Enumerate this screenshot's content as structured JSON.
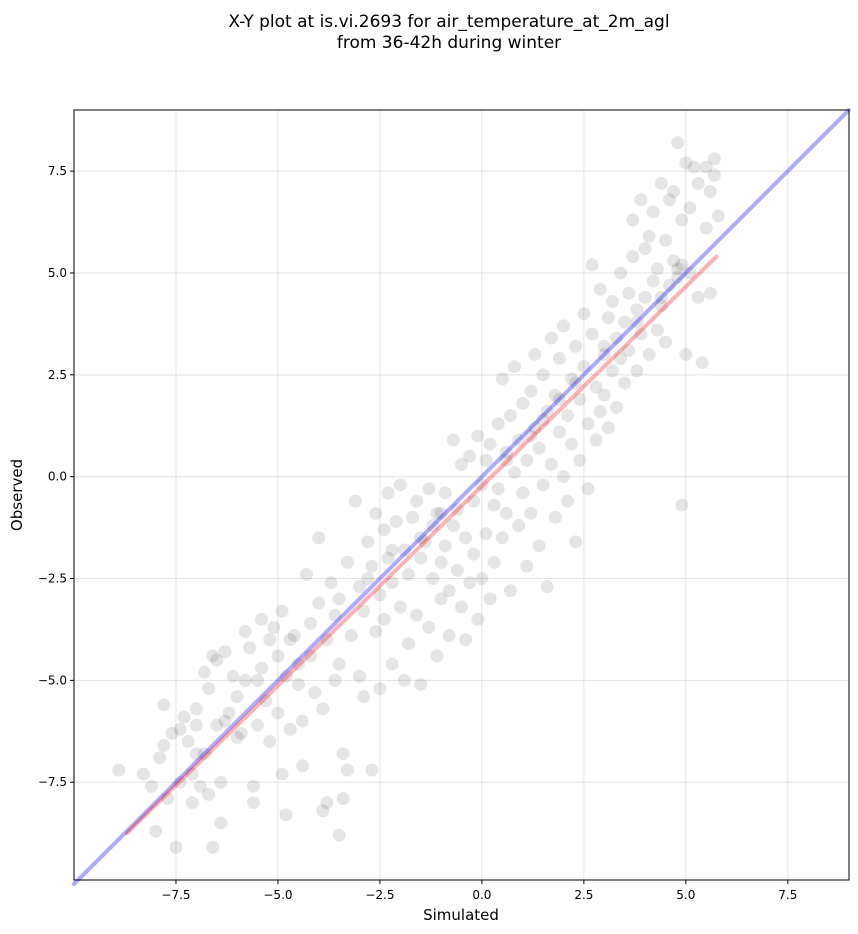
{
  "chart_data": {
    "type": "scatter",
    "title_line1": "X-Y plot at is.vi.2693 for air_temperature_at_2m_agl",
    "title_line2": "from 36-42h during winter",
    "xlabel": "Simulated",
    "ylabel": "Observed",
    "xlim": [
      -10,
      9
    ],
    "ylim": [
      -9.9,
      9
    ],
    "x_ticks": [
      -7.5,
      -5.0,
      -2.5,
      0.0,
      2.5,
      5.0,
      7.5
    ],
    "y_ticks": [
      7.5,
      5.0,
      2.5,
      0.0,
      -2.5,
      -5.0,
      -7.5
    ],
    "x_tick_labels": [
      "−7.5",
      "−5.0",
      "−2.5",
      "0.0",
      "2.5",
      "5.0",
      "7.5"
    ],
    "y_tick_labels": [
      "7.5",
      "5.0",
      "2.5",
      "0.0",
      "−2.5",
      "−5.0",
      "−7.5"
    ],
    "grid": true,
    "one_to_one_line": {
      "x": [
        -10,
        9
      ],
      "y": [
        -10,
        9
      ],
      "color": "#0000ff"
    },
    "regression_line": {
      "x": [
        -8.7,
        5.75
      ],
      "y": [
        -8.75,
        5.4
      ],
      "color": "#ff0000"
    },
    "point_color": "#000000",
    "points": [
      [
        -8.9,
        -7.2
      ],
      [
        -8.3,
        -7.3
      ],
      [
        -8.1,
        -7.6
      ],
      [
        -8.0,
        -8.7
      ],
      [
        -7.9,
        -6.9
      ],
      [
        -7.8,
        -5.6
      ],
      [
        -7.8,
        -6.6
      ],
      [
        -7.7,
        -7.9
      ],
      [
        -7.6,
        -6.3
      ],
      [
        -7.5,
        -9.1
      ],
      [
        -7.4,
        -7.5
      ],
      [
        -7.4,
        -6.2
      ],
      [
        -7.3,
        -5.9
      ],
      [
        -7.2,
        -6.5
      ],
      [
        -7.1,
        -8.0
      ],
      [
        -7.1,
        -7.3
      ],
      [
        -7.0,
        -6.1
      ],
      [
        -7.0,
        -5.7
      ],
      [
        -6.9,
        -7.6
      ],
      [
        -6.8,
        -4.8
      ],
      [
        -6.8,
        -6.8
      ],
      [
        -6.7,
        -7.8
      ],
      [
        -6.7,
        -5.2
      ],
      [
        -6.6,
        -4.4
      ],
      [
        -6.6,
        -9.1
      ],
      [
        -6.5,
        -4.5
      ],
      [
        -6.5,
        -6.1
      ],
      [
        -6.4,
        -7.5
      ],
      [
        -6.4,
        -8.5
      ],
      [
        -6.3,
        -4.3
      ],
      [
        -6.2,
        -5.8
      ],
      [
        -6.1,
        -4.9
      ],
      [
        -6.0,
        -5.4
      ],
      [
        -5.9,
        -6.3
      ],
      [
        -5.8,
        -3.8
      ],
      [
        -5.8,
        -5.0
      ],
      [
        -5.7,
        -4.2
      ],
      [
        -5.6,
        -7.6
      ],
      [
        -5.6,
        -8.0
      ],
      [
        -5.5,
        -6.1
      ],
      [
        -5.4,
        -4.7
      ],
      [
        -5.4,
        -3.5
      ],
      [
        -5.3,
        -5.5
      ],
      [
        -5.2,
        -6.5
      ],
      [
        -5.2,
        -4.0
      ],
      [
        -5.1,
        -3.7
      ],
      [
        -5.0,
        -5.8
      ],
      [
        -5.0,
        -4.4
      ],
      [
        -4.9,
        -7.3
      ],
      [
        -4.9,
        -3.3
      ],
      [
        -4.8,
        -8.3
      ],
      [
        -4.8,
        -4.9
      ],
      [
        -4.7,
        -6.2
      ],
      [
        -4.6,
        -3.9
      ],
      [
        -4.5,
        -5.1
      ],
      [
        -4.5,
        -4.6
      ],
      [
        -4.4,
        -7.1
      ],
      [
        -4.4,
        -6.0
      ],
      [
        -4.3,
        -2.4
      ],
      [
        -4.2,
        -3.6
      ],
      [
        -4.2,
        -4.4
      ],
      [
        -4.1,
        -5.3
      ],
      [
        -4.0,
        -1.5
      ],
      [
        -4.0,
        -3.1
      ],
      [
        -3.9,
        -5.7
      ],
      [
        -3.9,
        -8.2
      ],
      [
        -3.8,
        -4.0
      ],
      [
        -3.8,
        -8.0
      ],
      [
        -3.7,
        -2.6
      ],
      [
        -3.6,
        -3.4
      ],
      [
        -3.6,
        -5.0
      ],
      [
        -3.5,
        -4.6
      ],
      [
        -3.5,
        -8.8
      ],
      [
        -3.4,
        -6.8
      ],
      [
        -3.4,
        -7.9
      ],
      [
        -3.3,
        -7.2
      ],
      [
        -3.3,
        -2.1
      ],
      [
        -3.2,
        -3.9
      ],
      [
        -3.1,
        -0.6
      ],
      [
        -3.0,
        -4.9
      ],
      [
        -3.0,
        -2.7
      ],
      [
        -2.9,
        -3.3
      ],
      [
        -2.9,
        -5.4
      ],
      [
        -2.8,
        -1.6
      ],
      [
        -2.7,
        -2.2
      ],
      [
        -2.7,
        -7.2
      ],
      [
        -2.6,
        -3.8
      ],
      [
        -2.6,
        -0.9
      ],
      [
        -2.5,
        -2.9
      ],
      [
        -2.5,
        -5.2
      ],
      [
        -2.4,
        -1.3
      ],
      [
        -2.4,
        -3.5
      ],
      [
        -2.3,
        -2.0
      ],
      [
        -2.3,
        -0.4
      ],
      [
        -2.2,
        -4.6
      ],
      [
        -2.2,
        -2.6
      ],
      [
        -2.1,
        -1.1
      ],
      [
        -2.0,
        -3.2
      ],
      [
        -2.0,
        -0.2
      ],
      [
        -1.9,
        -1.8
      ],
      [
        -1.9,
        -5.0
      ],
      [
        -1.8,
        -2.4
      ],
      [
        -1.8,
        -4.1
      ],
      [
        -1.7,
        -1.0
      ],
      [
        -1.6,
        -3.4
      ],
      [
        -1.6,
        -0.6
      ],
      [
        -1.5,
        -2.0
      ],
      [
        -1.5,
        -5.1
      ],
      [
        -1.4,
        -1.6
      ],
      [
        -1.3,
        -3.7
      ],
      [
        -1.3,
        -0.3
      ],
      [
        -1.2,
        -2.5
      ],
      [
        -1.2,
        -1.2
      ],
      [
        -1.1,
        -4.4
      ],
      [
        -1.1,
        -0.9
      ],
      [
        -1.0,
        -2.1
      ],
      [
        -1.0,
        -3.0
      ],
      [
        -0.9,
        -1.7
      ],
      [
        -0.9,
        -0.4
      ],
      [
        -0.8,
        -3.9
      ],
      [
        -0.8,
        -2.8
      ],
      [
        -0.7,
        -1.2
      ],
      [
        -0.7,
        0.9
      ],
      [
        -0.6,
        -2.3
      ],
      [
        -0.6,
        -0.8
      ],
      [
        -0.5,
        0.3
      ],
      [
        -0.5,
        -3.2
      ],
      [
        -0.4,
        -1.5
      ],
      [
        -0.4,
        -4.0
      ],
      [
        -0.3,
        0.5
      ],
      [
        -0.3,
        -2.6
      ],
      [
        -0.2,
        -0.6
      ],
      [
        -0.2,
        -1.9
      ],
      [
        -0.1,
        1.0
      ],
      [
        -0.1,
        -3.5
      ],
      [
        0.0,
        -0.2
      ],
      [
        0.0,
        -2.5
      ],
      [
        0.1,
        0.4
      ],
      [
        0.1,
        -1.4
      ],
      [
        0.2,
        -3.0
      ],
      [
        0.2,
        0.8
      ],
      [
        0.3,
        -0.7
      ],
      [
        0.3,
        -2.1
      ],
      [
        0.4,
        1.3
      ],
      [
        0.4,
        -0.3
      ],
      [
        0.5,
        -1.5
      ],
      [
        0.5,
        2.4
      ],
      [
        0.6,
        0.6
      ],
      [
        0.6,
        -0.9
      ],
      [
        0.7,
        -2.8
      ],
      [
        0.7,
        1.5
      ],
      [
        0.8,
        0.1
      ],
      [
        0.8,
        2.7
      ],
      [
        0.9,
        -1.2
      ],
      [
        0.9,
        0.9
      ],
      [
        1.0,
        -0.4
      ],
      [
        1.0,
        1.8
      ],
      [
        1.1,
        -2.2
      ],
      [
        1.1,
        0.4
      ],
      [
        1.2,
        2.1
      ],
      [
        1.2,
        -0.9
      ],
      [
        1.3,
        1.2
      ],
      [
        1.3,
        3.0
      ],
      [
        1.4,
        -1.7
      ],
      [
        1.4,
        0.7
      ],
      [
        1.5,
        2.5
      ],
      [
        1.5,
        -0.2
      ],
      [
        1.6,
        1.6
      ],
      [
        1.6,
        -2.7
      ],
      [
        1.7,
        3.4
      ],
      [
        1.7,
        0.3
      ],
      [
        1.8,
        2.0
      ],
      [
        1.8,
        -1.0
      ],
      [
        1.9,
        1.1
      ],
      [
        1.9,
        2.9
      ],
      [
        2.0,
        0.0
      ],
      [
        2.0,
        3.7
      ],
      [
        2.1,
        1.5
      ],
      [
        2.1,
        -0.6
      ],
      [
        2.2,
        2.4
      ],
      [
        2.2,
        0.8
      ],
      [
        2.3,
        -1.6
      ],
      [
        2.3,
        3.2
      ],
      [
        2.4,
        1.9
      ],
      [
        2.4,
        0.4
      ],
      [
        2.5,
        2.7
      ],
      [
        2.5,
        4.0
      ],
      [
        2.6,
        1.3
      ],
      [
        2.6,
        -0.3
      ],
      [
        2.7,
        3.5
      ],
      [
        2.7,
        5.2
      ],
      [
        2.8,
        2.2
      ],
      [
        2.8,
        0.9
      ],
      [
        2.9,
        4.6
      ],
      [
        2.9,
        1.6
      ],
      [
        3.0,
        3.0
      ],
      [
        3.0,
        2.0
      ],
      [
        3.1,
        3.9
      ],
      [
        3.1,
        1.2
      ],
      [
        3.2,
        4.3
      ],
      [
        3.2,
        2.6
      ],
      [
        3.3,
        3.4
      ],
      [
        3.3,
        1.7
      ],
      [
        3.4,
        5.0
      ],
      [
        3.4,
        2.9
      ],
      [
        3.5,
        3.8
      ],
      [
        3.5,
        2.3
      ],
      [
        3.6,
        4.5
      ],
      [
        3.6,
        3.1
      ],
      [
        3.7,
        6.3
      ],
      [
        3.7,
        5.4
      ],
      [
        3.8,
        2.6
      ],
      [
        3.8,
        4.1
      ],
      [
        3.9,
        6.8
      ],
      [
        3.9,
        3.5
      ],
      [
        4.0,
        5.6
      ],
      [
        4.0,
        4.4
      ],
      [
        4.1,
        3.0
      ],
      [
        4.1,
        5.9
      ],
      [
        4.2,
        4.8
      ],
      [
        4.2,
        6.5
      ],
      [
        4.3,
        3.6
      ],
      [
        4.3,
        5.1
      ],
      [
        4.4,
        7.2
      ],
      [
        4.4,
        4.2
      ],
      [
        4.5,
        5.8
      ],
      [
        4.5,
        3.3
      ],
      [
        4.6,
        6.8
      ],
      [
        4.6,
        4.7
      ],
      [
        4.7,
        5.3
      ],
      [
        4.7,
        7.0
      ],
      [
        4.8,
        8.2
      ],
      [
        4.8,
        4.9
      ],
      [
        4.9,
        6.3
      ],
      [
        4.9,
        -0.7
      ],
      [
        5.0,
        7.7
      ],
      [
        5.0,
        3.0
      ],
      [
        5.1,
        5.0
      ],
      [
        5.1,
        6.6
      ],
      [
        5.2,
        7.6
      ],
      [
        5.3,
        4.4
      ],
      [
        5.3,
        7.2
      ],
      [
        5.4,
        2.8
      ],
      [
        5.5,
        7.6
      ],
      [
        5.5,
        6.1
      ],
      [
        5.6,
        7.0
      ],
      [
        5.6,
        4.5
      ],
      [
        5.7,
        7.8
      ],
      [
        5.7,
        7.4
      ],
      [
        5.8,
        6.4
      ],
      [
        -6.0,
        -6.4
      ],
      [
        -5.5,
        -5.0
      ],
      [
        -4.7,
        -4.0
      ],
      [
        -3.5,
        -3.0
      ],
      [
        -2.8,
        -2.5
      ],
      [
        -1.5,
        -1.5
      ],
      [
        -1.0,
        -0.9
      ],
      [
        0.6,
        0.4
      ],
      [
        1.2,
        1.0
      ],
      [
        1.5,
        1.4
      ],
      [
        1.9,
        1.9
      ],
      [
        2.3,
        2.3
      ],
      [
        3.0,
        3.2
      ],
      [
        3.8,
        3.8
      ],
      [
        4.4,
        4.4
      ],
      [
        4.8,
        5.1
      ],
      [
        4.9,
        5.2
      ],
      [
        -7.0,
        -6.8
      ],
      [
        -6.3,
        -6.0
      ],
      [
        -2.2,
        -1.8
      ]
    ]
  }
}
